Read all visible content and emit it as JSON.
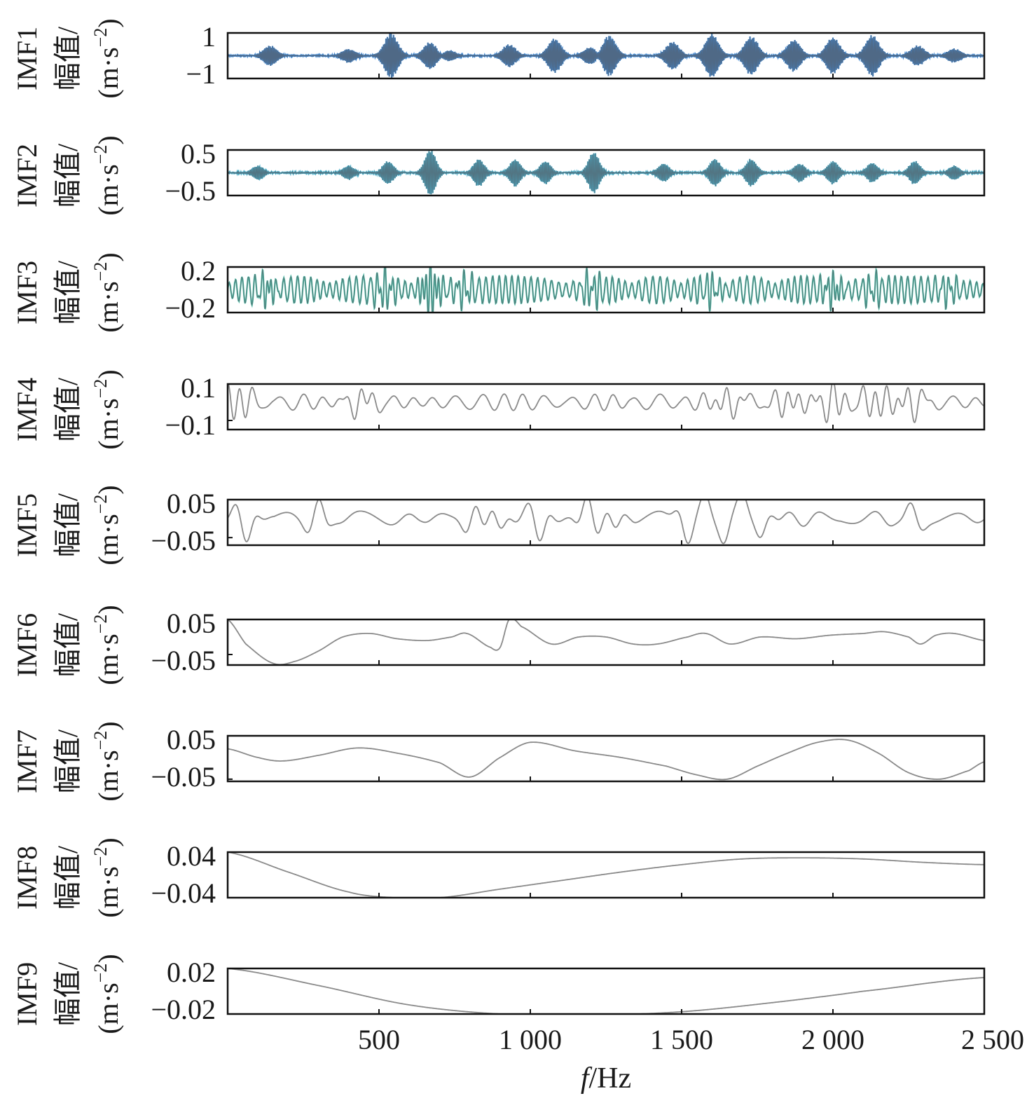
{
  "chart_data": {
    "type": "line",
    "xlabel_italic": "f",
    "xlabel_rest": "/Hz",
    "xlim": [
      0,
      2500
    ],
    "xticks": [
      500,
      1000,
      1500,
      2000,
      2500
    ],
    "xtick_labels": [
      "500",
      "1 000",
      "1 500",
      "2 000",
      "2 500"
    ],
    "ylabel_line2": "幅值/",
    "ylabel_unit_prefix": "(m·s",
    "ylabel_unit_exp": "−2",
    "ylabel_unit_suffix": ")",
    "line_color": "#8a8a8a",
    "panels": [
      {
        "label": "IMF1",
        "ylim": [
          -1,
          1
        ],
        "yticks": [
          1,
          -1
        ],
        "ytick_labels": [
          "1",
          "−1"
        ],
        "accent_color": "#1f78d4",
        "baseline": 0,
        "bursts": [
          [
            140,
            0.45
          ],
          [
            400,
            0.3
          ],
          [
            540,
            1.0
          ],
          [
            670,
            0.6
          ],
          [
            730,
            0.25
          ],
          [
            930,
            0.5
          ],
          [
            1080,
            0.75
          ],
          [
            1200,
            0.4
          ],
          [
            1260,
            0.9
          ],
          [
            1470,
            0.6
          ],
          [
            1600,
            0.95
          ],
          [
            1730,
            0.85
          ],
          [
            1870,
            0.7
          ],
          [
            2000,
            0.8
          ],
          [
            2130,
            0.9
          ],
          [
            2280,
            0.45
          ],
          [
            2400,
            0.3
          ]
        ],
        "burst_width": 22,
        "burst_freq": 0.6,
        "noise": 0.05
      },
      {
        "label": "IMF2",
        "ylim": [
          -0.5,
          0.5
        ],
        "yticks": [
          0.5,
          -0.5
        ],
        "ytick_labels": [
          "0.5",
          "−0.5"
        ],
        "accent_color": "#2aa7c8",
        "baseline": 0,
        "bursts": [
          [
            100,
            0.15
          ],
          [
            400,
            0.15
          ],
          [
            530,
            0.25
          ],
          [
            670,
            0.5
          ],
          [
            830,
            0.3
          ],
          [
            950,
            0.3
          ],
          [
            1050,
            0.25
          ],
          [
            1210,
            0.45
          ],
          [
            1440,
            0.2
          ],
          [
            1610,
            0.3
          ],
          [
            1730,
            0.3
          ],
          [
            1890,
            0.2
          ],
          [
            2000,
            0.25
          ],
          [
            2130,
            0.22
          ],
          [
            2270,
            0.25
          ],
          [
            2400,
            0.15
          ]
        ],
        "burst_width": 18,
        "burst_freq": 0.5,
        "noise": 0.03
      },
      {
        "label": "IMF3",
        "ylim": [
          -0.2,
          0.2
        ],
        "yticks": [
          0.2,
          -0.2
        ],
        "ytick_labels": [
          "0.2",
          "−0.2"
        ],
        "accent_color": "#2bb59a",
        "baseline": 0,
        "osc": [
          [
            0,
            2500,
            0.05,
            0.12
          ]
        ],
        "bursts": [
          [
            130,
            0.1
          ],
          [
            520,
            0.12
          ],
          [
            670,
            0.2
          ],
          [
            780,
            0.1
          ],
          [
            1200,
            0.1
          ],
          [
            1600,
            0.08
          ],
          [
            2000,
            0.12
          ],
          [
            2130,
            0.08
          ],
          [
            2380,
            0.08
          ]
        ],
        "burst_width": 25,
        "burst_freq": 0.18,
        "noise": 0.01
      },
      {
        "label": "IMF4",
        "ylim": [
          -0.15,
          0.1
        ],
        "yticks": [
          0.1,
          -0.1
        ],
        "ytick_labels": [
          "0.1",
          "−0.1"
        ],
        "accent_color": "#8a8a8a",
        "baseline": 0,
        "osc": [
          [
            0,
            2500,
            0.015,
            0.045
          ]
        ],
        "bursts": [
          [
            20,
            -0.12
          ],
          [
            440,
            0.06
          ],
          [
            1650,
            0.07
          ],
          [
            1850,
            0.08
          ],
          [
            2000,
            0.1
          ],
          [
            2140,
            0.1
          ],
          [
            2250,
            0.08
          ]
        ],
        "burst_width": 40,
        "burst_freq": 0.06,
        "noise": 0.0
      },
      {
        "label": "IMF5",
        "ylim": [
          -0.07,
          0.05
        ],
        "yticks": [
          0.05,
          -0.05
        ],
        "ytick_labels": [
          "0.05",
          "−0.05"
        ],
        "accent_color": "#8a8a8a",
        "baseline": 0,
        "osc": [
          [
            0,
            2500,
            0.008,
            0.02
          ]
        ],
        "bursts": [
          [
            60,
            -0.05
          ],
          [
            300,
            0.04
          ],
          [
            820,
            0.05
          ],
          [
            900,
            -0.04
          ],
          [
            1030,
            -0.05
          ],
          [
            1190,
            0.05
          ],
          [
            1280,
            -0.04
          ],
          [
            1520,
            -0.05
          ],
          [
            1580,
            0.05
          ],
          [
            1640,
            -0.06
          ],
          [
            1700,
            0.05
          ],
          [
            1760,
            -0.04
          ],
          [
            2260,
            0.03
          ]
        ],
        "burst_width": 30,
        "burst_freq": 0.03,
        "noise": 0.0
      },
      {
        "label": "IMF6",
        "ylim": [
          -0.08,
          0.05
        ],
        "yticks": [
          0.05,
          -0.05
        ],
        "ytick_labels": [
          "0.05",
          "−0.05"
        ],
        "accent_color": "#8a8a8a",
        "baseline": 0,
        "curve": [
          [
            0,
            0.05
          ],
          [
            60,
            -0.02
          ],
          [
            150,
            -0.075
          ],
          [
            220,
            -0.07
          ],
          [
            300,
            -0.04
          ],
          [
            380,
            0.0
          ],
          [
            470,
            0.01
          ],
          [
            560,
            -0.005
          ],
          [
            660,
            -0.01
          ],
          [
            740,
            0.0
          ],
          [
            790,
            0.01
          ],
          [
            870,
            -0.03
          ],
          [
            900,
            -0.03
          ],
          [
            930,
            0.05
          ],
          [
            970,
            0.03
          ],
          [
            1070,
            -0.02
          ],
          [
            1160,
            0.0
          ],
          [
            1250,
            0.0
          ],
          [
            1340,
            -0.02
          ],
          [
            1420,
            -0.02
          ],
          [
            1520,
            0.0
          ],
          [
            1580,
            0.01
          ],
          [
            1660,
            -0.02
          ],
          [
            1760,
            0.0
          ],
          [
            1880,
            -0.005
          ],
          [
            1990,
            0.005
          ],
          [
            2100,
            0.01
          ],
          [
            2170,
            0.015
          ],
          [
            2250,
            0.0
          ],
          [
            2290,
            -0.02
          ],
          [
            2340,
            0.005
          ],
          [
            2400,
            0.01
          ],
          [
            2500,
            -0.01
          ]
        ]
      },
      {
        "label": "IMF7",
        "ylim": [
          -0.055,
          0.05
        ],
        "yticks": [
          0.05,
          -0.05
        ],
        "ytick_labels": [
          "0.05",
          "−0.05"
        ],
        "accent_color": "#8a8a8a",
        "baseline": 0,
        "curve": [
          [
            0,
            0.02
          ],
          [
            100,
            0.0
          ],
          [
            180,
            -0.008
          ],
          [
            300,
            0.005
          ],
          [
            430,
            0.022
          ],
          [
            560,
            0.01
          ],
          [
            700,
            -0.012
          ],
          [
            800,
            -0.045
          ],
          [
            900,
            0.0
          ],
          [
            1000,
            0.035
          ],
          [
            1150,
            0.015
          ],
          [
            1300,
            0.0
          ],
          [
            1450,
            -0.02
          ],
          [
            1550,
            -0.04
          ],
          [
            1650,
            -0.05
          ],
          [
            1750,
            -0.02
          ],
          [
            1850,
            0.01
          ],
          [
            1950,
            0.035
          ],
          [
            2050,
            0.04
          ],
          [
            2150,
            0.01
          ],
          [
            2250,
            -0.035
          ],
          [
            2350,
            -0.05
          ],
          [
            2450,
            -0.03
          ],
          [
            2500,
            -0.01
          ]
        ]
      },
      {
        "label": "IMF8",
        "ylim": [
          -0.04,
          0.04
        ],
        "yticks": [
          0.04,
          -0.04
        ],
        "ytick_labels": [
          "0.04",
          "−0.04"
        ],
        "accent_color": "#8a8a8a",
        "baseline": 0,
        "curve": [
          [
            0,
            0.04
          ],
          [
            200,
            0.005
          ],
          [
            400,
            -0.03
          ],
          [
            550,
            -0.04
          ],
          [
            700,
            -0.04
          ],
          [
            900,
            -0.025
          ],
          [
            1100,
            -0.01
          ],
          [
            1300,
            0.005
          ],
          [
            1500,
            0.018
          ],
          [
            1700,
            0.028
          ],
          [
            1900,
            0.03
          ],
          [
            2100,
            0.028
          ],
          [
            2300,
            0.022
          ],
          [
            2500,
            0.018
          ]
        ]
      },
      {
        "label": "IMF9",
        "ylim": [
          -0.02,
          0.02
        ],
        "yticks": [
          0.02,
          -0.02
        ],
        "ytick_labels": [
          "0.02",
          "−0.02"
        ],
        "accent_color": "#8a8a8a",
        "baseline": 0,
        "curve": [
          [
            0,
            0.02
          ],
          [
            300,
            0.005
          ],
          [
            600,
            -0.012
          ],
          [
            900,
            -0.02
          ],
          [
            1200,
            -0.021
          ],
          [
            1500,
            -0.018
          ],
          [
            1800,
            -0.01
          ],
          [
            2100,
            0.0
          ],
          [
            2500,
            0.012
          ]
        ]
      }
    ]
  }
}
